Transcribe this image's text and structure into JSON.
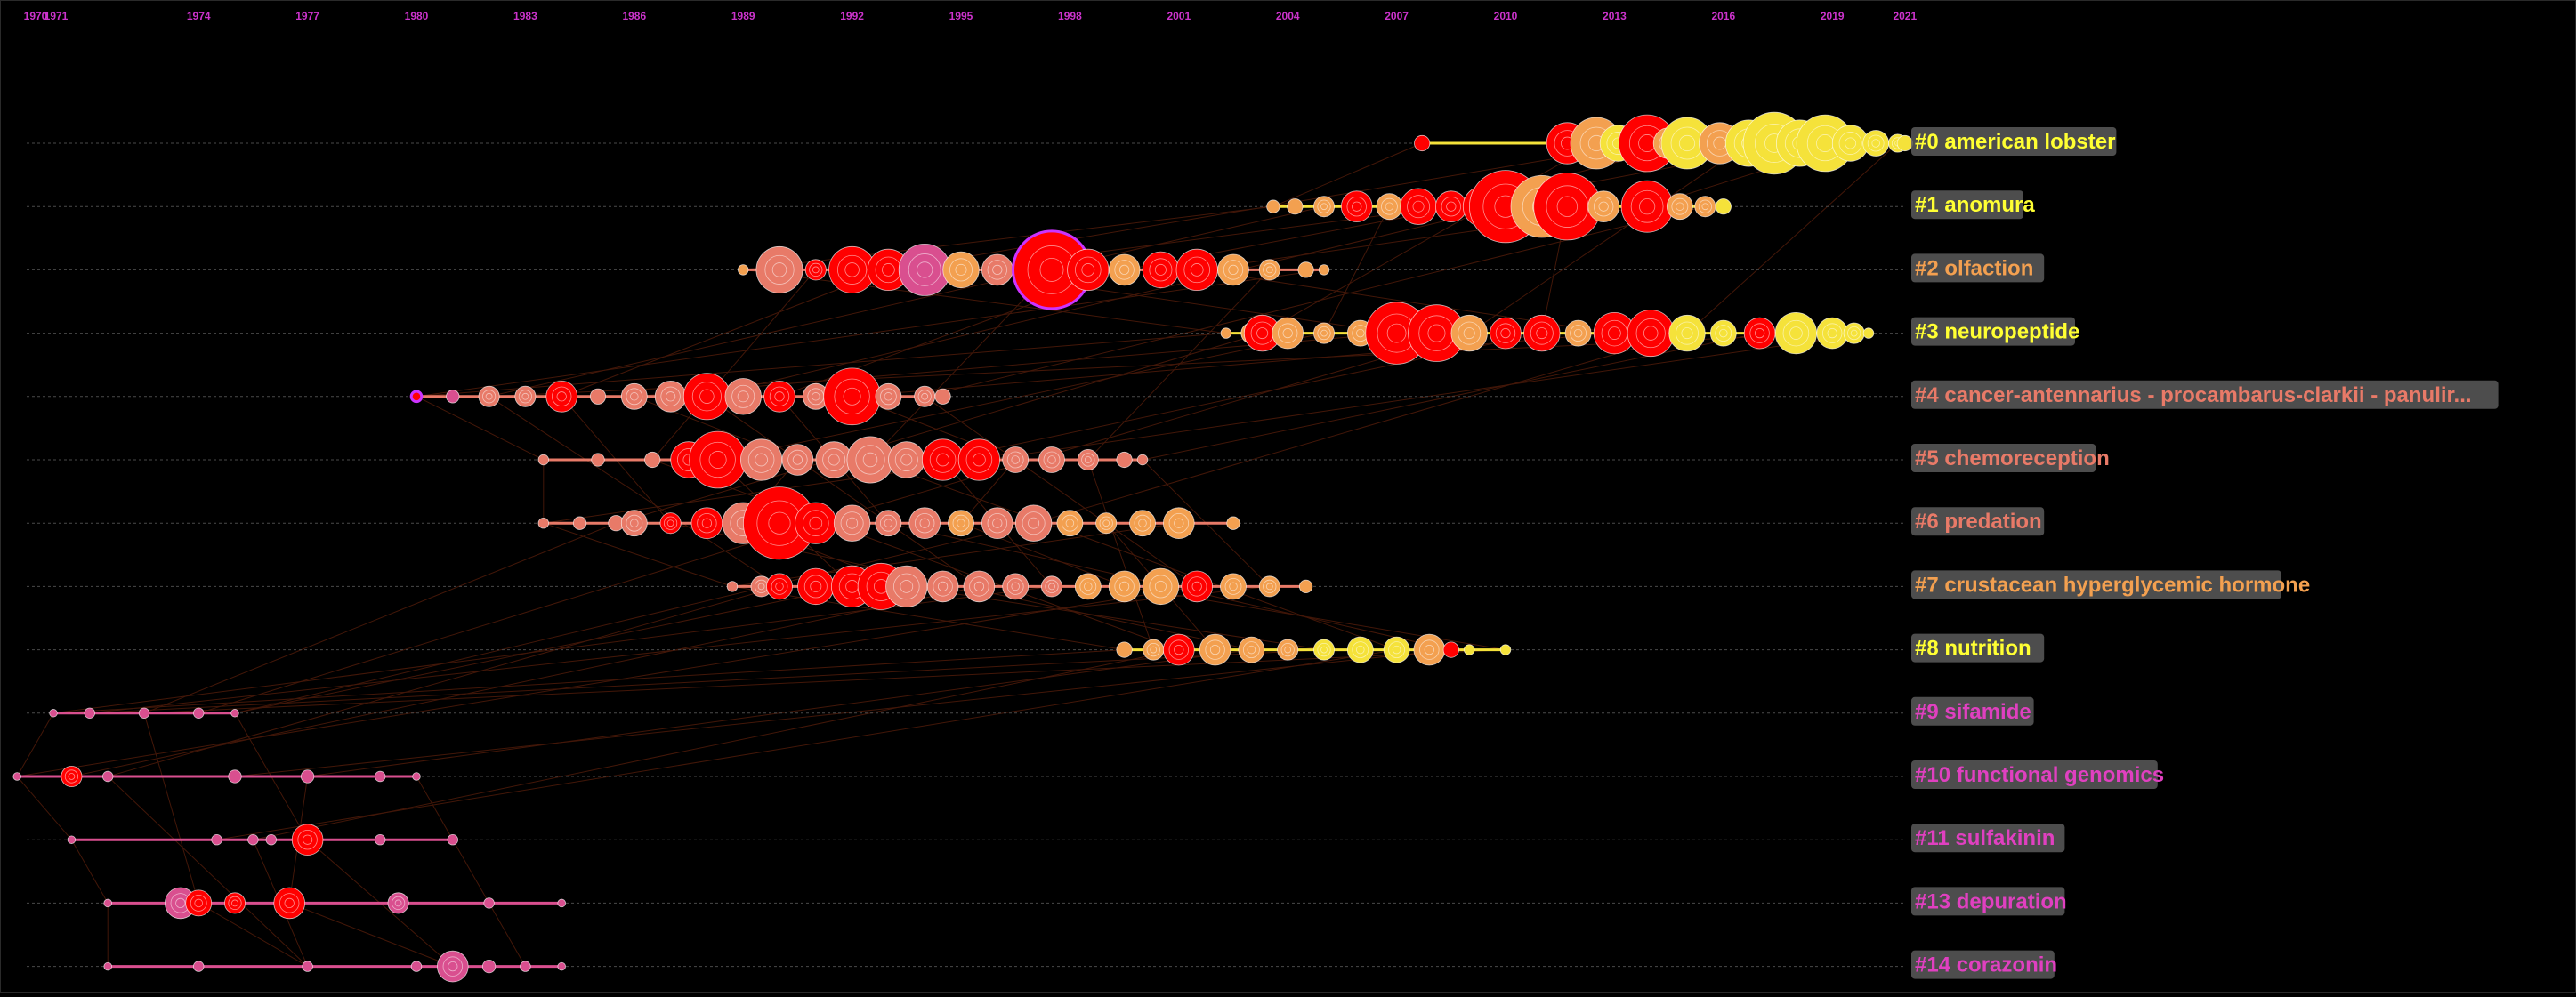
{
  "years": [
    "1970",
    "1971",
    "1974",
    "1977",
    "1980",
    "1983",
    "1986",
    "1989",
    "1992",
    "1995",
    "1998",
    "2001",
    "2004",
    "2007",
    "2010",
    "2013",
    "2016",
    "2019",
    "2021"
  ],
  "colors": {
    "background": "#000000",
    "year_label": "#cc33cc",
    "label_box": "#5a5a5a",
    "dashed": "#4a4a4a",
    "link": "#7a2a10",
    "pink": "#d94f8f",
    "salmon": "#e87a68",
    "red": "#ff0000",
    "orange": "#f3a050",
    "yellow": "#f5e23a",
    "purple": "#cc33ff"
  },
  "clusters": [
    {
      "id": 0,
      "label": "#0 american lobster",
      "label_color": "#ffff33",
      "start": 2007.7,
      "end": 2021.0,
      "nodes": [
        [
          2007.7,
          6,
          "red"
        ],
        [
          2011.7,
          16,
          "red"
        ],
        [
          2012.5,
          20,
          "orange"
        ],
        [
          2013.1,
          14,
          "yellow"
        ],
        [
          2013.9,
          22,
          "red"
        ],
        [
          2014.5,
          12,
          "orange"
        ],
        [
          2015.0,
          20,
          "yellow"
        ],
        [
          2015.9,
          16,
          "orange"
        ],
        [
          2016.7,
          18,
          "yellow"
        ],
        [
          2017.4,
          24,
          "yellow"
        ],
        [
          2018.1,
          18,
          "yellow"
        ],
        [
          2018.8,
          22,
          "yellow"
        ],
        [
          2019.5,
          14,
          "yellow"
        ],
        [
          2020.2,
          10,
          "yellow"
        ],
        [
          2020.8,
          7,
          "yellow"
        ],
        [
          2021.0,
          6,
          "yellow"
        ]
      ]
    },
    {
      "id": 1,
      "label": "#1 anomura",
      "label_color": "#ffff33",
      "start": 2003.6,
      "end": 2016.0,
      "nodes": [
        [
          2003.6,
          5,
          "orange"
        ],
        [
          2004.2,
          6,
          "orange"
        ],
        [
          2005.0,
          8,
          "orange"
        ],
        [
          2005.9,
          12,
          "red"
        ],
        [
          2006.8,
          10,
          "orange"
        ],
        [
          2007.6,
          14,
          "red"
        ],
        [
          2008.5,
          12,
          "red"
        ],
        [
          2009.4,
          16,
          "red"
        ],
        [
          2010.0,
          28,
          "red"
        ],
        [
          2011.0,
          24,
          "orange"
        ],
        [
          2011.7,
          26,
          "red"
        ],
        [
          2012.7,
          12,
          "orange"
        ],
        [
          2013.9,
          20,
          "red"
        ],
        [
          2014.8,
          10,
          "orange"
        ],
        [
          2015.5,
          8,
          "orange"
        ],
        [
          2016.0,
          6,
          "yellow"
        ]
      ]
    },
    {
      "id": 2,
      "label": "#2 olfaction",
      "label_color": "#f3a050",
      "start": 1989.0,
      "end": 2005.0,
      "nodes": [
        [
          1989.0,
          4,
          "orange"
        ],
        [
          1990.0,
          18,
          "salmon"
        ],
        [
          1991.0,
          8,
          "red"
        ],
        [
          1992.0,
          18,
          "red"
        ],
        [
          1993.0,
          16,
          "red"
        ],
        [
          1994.0,
          20,
          "pink"
        ],
        [
          1995.0,
          14,
          "orange"
        ],
        [
          1996.0,
          12,
          "salmon"
        ],
        [
          1997.5,
          30,
          "purple"
        ],
        [
          1998.5,
          16,
          "red"
        ],
        [
          1999.5,
          12,
          "orange"
        ],
        [
          2000.5,
          14,
          "red"
        ],
        [
          2001.5,
          16,
          "red"
        ],
        [
          2002.5,
          12,
          "orange"
        ],
        [
          2003.5,
          8,
          "orange"
        ],
        [
          2004.5,
          6,
          "orange"
        ],
        [
          2005.0,
          4,
          "orange"
        ]
      ]
    },
    {
      "id": 3,
      "label": "#3 neuropeptide",
      "label_color": "#ffff33",
      "start": 2002.3,
      "end": 2020.0,
      "nodes": [
        [
          2002.3,
          4,
          "orange"
        ],
        [
          2003.0,
          8,
          "orange"
        ],
        [
          2003.3,
          14,
          "red"
        ],
        [
          2004.0,
          12,
          "orange"
        ],
        [
          2005.0,
          8,
          "orange"
        ],
        [
          2006.0,
          10,
          "orange"
        ],
        [
          2007.0,
          24,
          "red"
        ],
        [
          2008.1,
          22,
          "red"
        ],
        [
          2009.0,
          14,
          "orange"
        ],
        [
          2010.0,
          12,
          "red"
        ],
        [
          2011.0,
          14,
          "red"
        ],
        [
          2012.0,
          10,
          "orange"
        ],
        [
          2013.0,
          16,
          "red"
        ],
        [
          2014.0,
          18,
          "red"
        ],
        [
          2015.0,
          14,
          "yellow"
        ],
        [
          2016.0,
          10,
          "yellow"
        ],
        [
          2017.0,
          12,
          "red"
        ],
        [
          2018.0,
          16,
          "yellow"
        ],
        [
          2019.0,
          12,
          "yellow"
        ],
        [
          2019.6,
          8,
          "yellow"
        ],
        [
          2020.0,
          4,
          "yellow"
        ]
      ]
    },
    {
      "id": 4,
      "label": "#4 cancer-antennarius - procambarus-clarkii - panulir...",
      "label_color": "#e87a68",
      "start": 1980.0,
      "end": 1994.5,
      "nodes": [
        [
          1980.0,
          4,
          "purple"
        ],
        [
          1981.0,
          5,
          "pink"
        ],
        [
          1982.0,
          8,
          "salmon"
        ],
        [
          1983.0,
          8,
          "salmon"
        ],
        [
          1984.0,
          12,
          "red"
        ],
        [
          1985.0,
          6,
          "salmon"
        ],
        [
          1986.0,
          10,
          "salmon"
        ],
        [
          1987.0,
          12,
          "salmon"
        ],
        [
          1988.0,
          18,
          "red"
        ],
        [
          1989.0,
          14,
          "salmon"
        ],
        [
          1990.0,
          12,
          "red"
        ],
        [
          1991.0,
          10,
          "salmon"
        ],
        [
          1992.0,
          22,
          "red"
        ],
        [
          1993.0,
          10,
          "salmon"
        ],
        [
          1994.0,
          8,
          "salmon"
        ],
        [
          1994.5,
          6,
          "salmon"
        ]
      ]
    },
    {
      "id": 5,
      "label": "#5 chemoreception",
      "label_color": "#e87a68",
      "start": 1983.5,
      "end": 2000.0,
      "nodes": [
        [
          1983.5,
          4,
          "salmon"
        ],
        [
          1985.0,
          5,
          "salmon"
        ],
        [
          1986.5,
          6,
          "salmon"
        ],
        [
          1987.5,
          14,
          "red"
        ],
        [
          1988.3,
          22,
          "red"
        ],
        [
          1989.5,
          16,
          "salmon"
        ],
        [
          1990.5,
          12,
          "salmon"
        ],
        [
          1991.5,
          14,
          "salmon"
        ],
        [
          1992.5,
          18,
          "salmon"
        ],
        [
          1993.5,
          14,
          "salmon"
        ],
        [
          1994.5,
          16,
          "red"
        ],
        [
          1995.5,
          16,
          "red"
        ],
        [
          1996.5,
          10,
          "salmon"
        ],
        [
          1997.5,
          10,
          "salmon"
        ],
        [
          1998.5,
          8,
          "salmon"
        ],
        [
          1999.5,
          6,
          "salmon"
        ],
        [
          2000.0,
          4,
          "salmon"
        ]
      ]
    },
    {
      "id": 6,
      "label": "#6 predation",
      "label_color": "#e87a68",
      "start": 1983.5,
      "end": 2002.5,
      "nodes": [
        [
          1983.5,
          4,
          "salmon"
        ],
        [
          1984.5,
          5,
          "salmon"
        ],
        [
          1985.5,
          6,
          "salmon"
        ],
        [
          1986.0,
          10,
          "salmon"
        ],
        [
          1987.0,
          8,
          "red"
        ],
        [
          1988.0,
          12,
          "red"
        ],
        [
          1989.0,
          16,
          "salmon"
        ],
        [
          1990.0,
          28,
          "red"
        ],
        [
          1991.0,
          16,
          "red"
        ],
        [
          1992.0,
          14,
          "salmon"
        ],
        [
          1993.0,
          10,
          "salmon"
        ],
        [
          1994.0,
          12,
          "salmon"
        ],
        [
          1995.0,
          10,
          "orange"
        ],
        [
          1996.0,
          12,
          "salmon"
        ],
        [
          1997.0,
          14,
          "salmon"
        ],
        [
          1998.0,
          10,
          "orange"
        ],
        [
          1999.0,
          8,
          "orange"
        ],
        [
          2000.0,
          10,
          "orange"
        ],
        [
          2001.0,
          12,
          "orange"
        ],
        [
          2002.5,
          5,
          "orange"
        ]
      ]
    },
    {
      "id": 7,
      "label": "#7 crustacean hyperglycemic hormone",
      "label_color": "#f3a050",
      "start": 1988.7,
      "end": 2004.5,
      "nodes": [
        [
          1988.7,
          4,
          "salmon"
        ],
        [
          1989.5,
          8,
          "salmon"
        ],
        [
          1990.0,
          10,
          "red"
        ],
        [
          1991.0,
          14,
          "red"
        ],
        [
          1992.0,
          16,
          "red"
        ],
        [
          1992.8,
          18,
          "red"
        ],
        [
          1993.5,
          16,
          "salmon"
        ],
        [
          1994.5,
          12,
          "salmon"
        ],
        [
          1995.5,
          12,
          "salmon"
        ],
        [
          1996.5,
          10,
          "salmon"
        ],
        [
          1997.5,
          8,
          "salmon"
        ],
        [
          1998.5,
          10,
          "orange"
        ],
        [
          1999.5,
          12,
          "orange"
        ],
        [
          2000.5,
          14,
          "orange"
        ],
        [
          2001.5,
          12,
          "red"
        ],
        [
          2002.5,
          10,
          "orange"
        ],
        [
          2003.5,
          8,
          "orange"
        ],
        [
          2004.5,
          5,
          "orange"
        ]
      ]
    },
    {
      "id": 8,
      "label": "#8 nutrition",
      "label_color": "#ffff33",
      "start": 1999.5,
      "end": 2010.0,
      "nodes": [
        [
          1999.5,
          6,
          "orange"
        ],
        [
          2000.3,
          8,
          "orange"
        ],
        [
          2001.0,
          12,
          "red"
        ],
        [
          2002.0,
          12,
          "orange"
        ],
        [
          2003.0,
          10,
          "orange"
        ],
        [
          2004.0,
          8,
          "orange"
        ],
        [
          2005.0,
          8,
          "yellow"
        ],
        [
          2006.0,
          10,
          "yellow"
        ],
        [
          2007.0,
          10,
          "yellow"
        ],
        [
          2007.9,
          12,
          "orange"
        ],
        [
          2008.5,
          6,
          "red"
        ],
        [
          2009.0,
          4,
          "yellow"
        ],
        [
          2010.0,
          4,
          "yellow"
        ]
      ]
    },
    {
      "id": 9,
      "label": "#9 sifamide",
      "label_color": "#e040c0",
      "start": 1970.0,
      "end": 1975.0,
      "nodes": [
        [
          1970.0,
          3,
          "pink"
        ],
        [
          1971.0,
          4,
          "pink"
        ],
        [
          1972.5,
          4,
          "pink"
        ],
        [
          1974.0,
          4,
          "pink"
        ],
        [
          1975.0,
          3,
          "pink"
        ]
      ]
    },
    {
      "id": 10,
      "label": "#10 functional genomics",
      "label_color": "#e040c0",
      "start": 1969.0,
      "end": 1980.0,
      "nodes": [
        [
          1969.0,
          3,
          "pink"
        ],
        [
          1970.5,
          8,
          "red"
        ],
        [
          1971.5,
          4,
          "pink"
        ],
        [
          1975.0,
          5,
          "pink"
        ],
        [
          1977.0,
          5,
          "pink"
        ],
        [
          1979.0,
          4,
          "pink"
        ],
        [
          1980.0,
          3,
          "pink"
        ]
      ]
    },
    {
      "id": 11,
      "label": "#11 sulfakinin",
      "label_color": "#e040c0",
      "start": 1970.5,
      "end": 1981.0,
      "nodes": [
        [
          1970.5,
          3,
          "pink"
        ],
        [
          1974.5,
          4,
          "pink"
        ],
        [
          1975.5,
          4,
          "pink"
        ],
        [
          1976.0,
          4,
          "pink"
        ],
        [
          1977.0,
          12,
          "red"
        ],
        [
          1979.0,
          4,
          "pink"
        ],
        [
          1981.0,
          4,
          "pink"
        ]
      ]
    },
    {
      "id": 13,
      "label": "#13 depuration",
      "label_color": "#e040c0",
      "start": 1971.5,
      "end": 1984.0,
      "nodes": [
        [
          1971.5,
          3,
          "pink"
        ],
        [
          1973.5,
          12,
          "pink"
        ],
        [
          1974.0,
          10,
          "red"
        ],
        [
          1975.0,
          8,
          "red"
        ],
        [
          1976.5,
          12,
          "red"
        ],
        [
          1979.5,
          8,
          "pink"
        ],
        [
          1982.0,
          4,
          "pink"
        ],
        [
          1984.0,
          3,
          "pink"
        ]
      ]
    },
    {
      "id": 14,
      "label": "#14 corazonin",
      "label_color": "#e040c0",
      "start": 1971.5,
      "end": 1984.0,
      "nodes": [
        [
          1971.5,
          3,
          "pink"
        ],
        [
          1974.0,
          4,
          "pink"
        ],
        [
          1977.0,
          4,
          "pink"
        ],
        [
          1980.0,
          4,
          "pink"
        ],
        [
          1981.0,
          12,
          "pink"
        ],
        [
          1982.0,
          5,
          "pink"
        ],
        [
          1983.0,
          4,
          "pink"
        ],
        [
          1984.0,
          3,
          "pink"
        ]
      ]
    }
  ]
}
